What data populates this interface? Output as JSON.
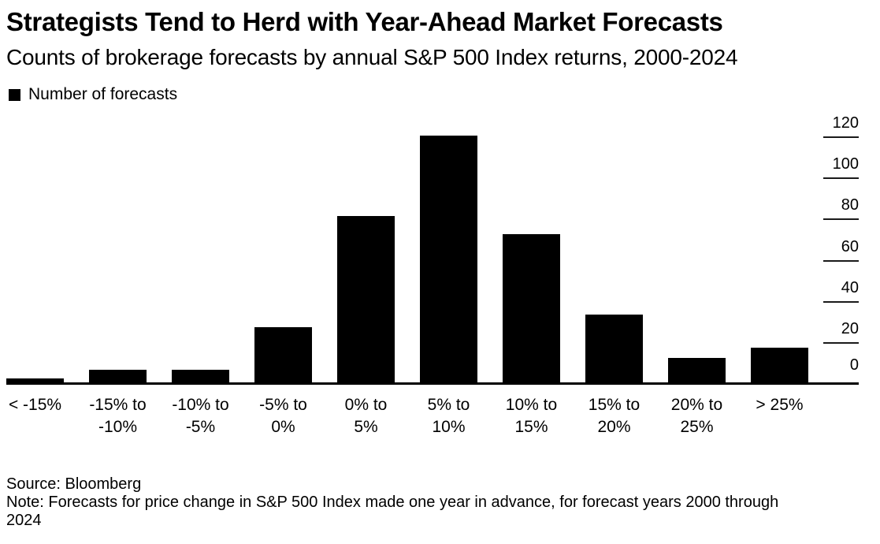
{
  "header": {
    "title": "Strategists Tend to Herd with Year-Ahead Market Forecasts",
    "subtitle": "Counts of brokerage forecasts by annual S&P 500 Index returns, 2000-2024"
  },
  "legend": {
    "label": "Number of forecasts",
    "swatch_color": "#000000"
  },
  "chart_data": {
    "type": "bar",
    "title": "Strategists Tend to Herd with Year-Ahead Market Forecasts",
    "subtitle": "Counts of brokerage forecasts by annual S&P 500 Index returns, 2000-2024",
    "series_name": "Number of forecasts",
    "categories": [
      "< -15%",
      "-15% to -10%",
      "-10% to -5%",
      "-5% to 0%",
      "0% to 5%",
      "5% to 10%",
      "10% to 15%",
      "15% to 20%",
      "20% to 25%",
      "> 25%"
    ],
    "category_lines": [
      [
        "< -15%"
      ],
      [
        "-15% to",
        "-10%"
      ],
      [
        "-10% to",
        "-5%"
      ],
      [
        "-5% to",
        "0%"
      ],
      [
        "0% to",
        "5%"
      ],
      [
        "5% to",
        "10%"
      ],
      [
        "10% to",
        "15%"
      ],
      [
        "15% to",
        "20%"
      ],
      [
        "20% to",
        "25%"
      ],
      [
        "> 25%"
      ]
    ],
    "values": [
      2,
      6,
      6,
      27,
      81,
      120,
      72,
      33,
      12,
      17
    ],
    "xlabel": "",
    "ylabel": "",
    "ylim": [
      0,
      120
    ],
    "yticks": [
      0,
      20,
      40,
      60,
      80,
      100,
      120
    ],
    "y_axis_side": "right",
    "grid": false,
    "legend_position": "top-left",
    "bar_color": "#000000",
    "background_color": "#ffffff"
  },
  "footer": {
    "source": "Source: Bloomberg",
    "note": "Note: Forecasts for price change in S&P 500 Index made one year in advance, for forecast years 2000 through 2024"
  }
}
